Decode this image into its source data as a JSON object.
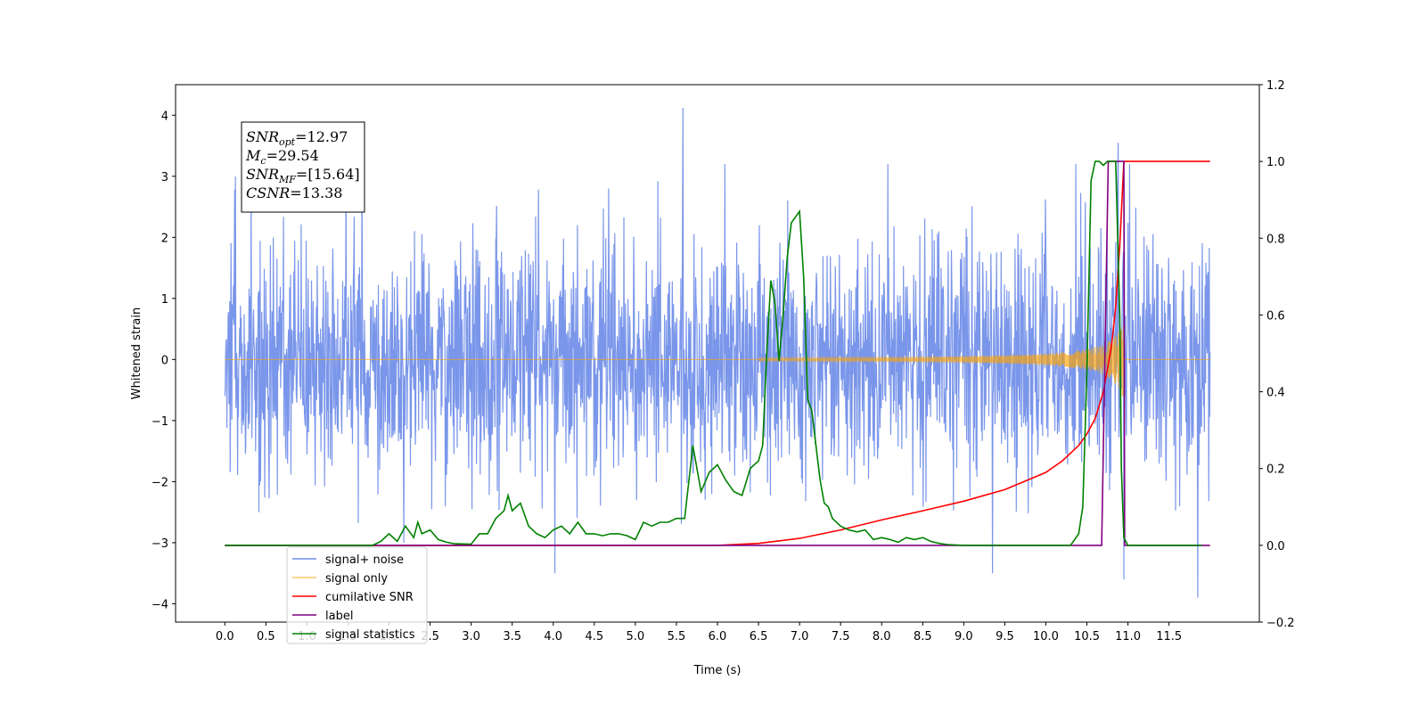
{
  "chart_data": {
    "type": "line",
    "title": "",
    "xlabel": "Time (s)",
    "ylabel": "Whitened strain",
    "xlim": [
      -0.6,
      12.6
    ],
    "ylim": [
      -4.3,
      4.5
    ],
    "y2lim": [
      -0.2,
      1.2
    ],
    "x_ticks": [
      "0.0",
      "0.5",
      "1.0",
      "1.5",
      "2.0",
      "2.5",
      "3.0",
      "3.5",
      "4.0",
      "4.5",
      "5.0",
      "5.5",
      "6.0",
      "6.5",
      "7.0",
      "7.5",
      "8.0",
      "8.5",
      "9.0",
      "9.5",
      "10.0",
      "10.5",
      "11.0",
      "11.5"
    ],
    "x_tick_values": [
      0,
      0.5,
      1,
      1.5,
      2,
      2.5,
      3,
      3.5,
      4,
      4.5,
      5,
      5.5,
      6,
      6.5,
      7,
      7.5,
      8,
      8.5,
      9,
      9.5,
      10,
      10.5,
      11,
      11.5
    ],
    "y_ticks": [
      "−4",
      "−3",
      "−2",
      "−1",
      "0",
      "1",
      "2",
      "3",
      "4"
    ],
    "y_tick_values": [
      -4,
      -3,
      -2,
      -1,
      0,
      1,
      2,
      3,
      4
    ],
    "y2_ticks": [
      "−0.2",
      "0.0",
      "0.2",
      "0.4",
      "0.6",
      "0.8",
      "1.0",
      "1.2"
    ],
    "y2_tick_values": [
      -0.2,
      0,
      0.2,
      0.4,
      0.6,
      0.8,
      1.0,
      1.2
    ],
    "grid": false,
    "legend_placement": "lower-left",
    "annotation": {
      "lines": [
        {
          "main": "SNR",
          "sub": "opt",
          "rest": "=12.97"
        },
        {
          "main": "M",
          "sub": "c",
          "rest": "=29.54"
        },
        {
          "main": "SNR",
          "sub": "MF",
          "rest": "=[15.64]"
        },
        {
          "main": "CSNR",
          "sub": "",
          "rest": "=13.38"
        }
      ]
    },
    "series": [
      {
        "name": "signal+ noise",
        "axis": "left",
        "color": "#4169E1",
        "kind": "noise",
        "x_range": [
          0,
          12.0
        ],
        "typical_peak": 2.4,
        "max": 4.12,
        "min": -3.9,
        "notable_peaks": [
          [
            5.58,
            4.12
          ],
          [
            10.88,
            3.55
          ],
          [
            0.32,
            2.8
          ],
          [
            11.85,
            -3.9
          ],
          [
            10.95,
            -3.6
          ],
          [
            4.02,
            -3.5
          ],
          [
            9.35,
            -3.5
          ]
        ]
      },
      {
        "name": "signal only",
        "axis": "left",
        "color": "#FFA500",
        "kind": "chirp",
        "start": 6.5,
        "end": 10.95,
        "final_amplitude": 0.7
      },
      {
        "name": "cumilative SNR",
        "axis": "right",
        "color": "#FF0000",
        "x": [
          0,
          6.0,
          6.5,
          7.0,
          7.5,
          8.0,
          8.5,
          9.0,
          9.5,
          10.0,
          10.2,
          10.4,
          10.5,
          10.6,
          10.7,
          10.8,
          10.85,
          10.9,
          10.95,
          12.0
        ],
        "y": [
          0,
          0,
          0.005,
          0.018,
          0.04,
          0.066,
          0.09,
          0.115,
          0.145,
          0.19,
          0.22,
          0.26,
          0.29,
          0.33,
          0.4,
          0.52,
          0.62,
          0.78,
          1.0,
          1.0
        ]
      },
      {
        "name": "label",
        "axis": "right",
        "color": "#800080",
        "x": [
          0,
          10.68,
          10.76,
          10.95,
          10.96,
          12.0
        ],
        "y": [
          0,
          0,
          1.0,
          1.0,
          0,
          0
        ]
      },
      {
        "name": "signal statistics",
        "axis": "right",
        "color": "#008000",
        "x": [
          0,
          1.8,
          1.9,
          2.0,
          2.1,
          2.2,
          2.3,
          2.35,
          2.4,
          2.5,
          2.6,
          2.7,
          2.8,
          3.0,
          3.1,
          3.2,
          3.3,
          3.4,
          3.45,
          3.5,
          3.6,
          3.7,
          3.8,
          3.9,
          4.0,
          4.1,
          4.2,
          4.3,
          4.4,
          4.5,
          4.6,
          4.7,
          4.8,
          4.9,
          5.0,
          5.1,
          5.2,
          5.3,
          5.4,
          5.5,
          5.6,
          5.7,
          5.8,
          5.9,
          6.0,
          6.1,
          6.2,
          6.3,
          6.4,
          6.5,
          6.55,
          6.6,
          6.65,
          6.7,
          6.75,
          6.8,
          6.85,
          6.9,
          7.0,
          7.05,
          7.1,
          7.15,
          7.2,
          7.25,
          7.3,
          7.35,
          7.4,
          7.5,
          7.6,
          7.7,
          7.8,
          7.9,
          8.0,
          8.1,
          8.2,
          8.3,
          8.4,
          8.5,
          8.6,
          8.7,
          8.8,
          9.0,
          10.0,
          10.3,
          10.4,
          10.45,
          10.5,
          10.55,
          10.6,
          10.65,
          10.7,
          10.75,
          10.8,
          10.85,
          10.9,
          10.92,
          10.95,
          11.0,
          11.9
        ],
        "y": [
          0,
          0.0,
          0.01,
          0.03,
          0.01,
          0.05,
          0.02,
          0.06,
          0.03,
          0.04,
          0.015,
          0.008,
          0.004,
          0.003,
          0.03,
          0.03,
          0.07,
          0.09,
          0.13,
          0.09,
          0.11,
          0.05,
          0.03,
          0.02,
          0.04,
          0.05,
          0.03,
          0.06,
          0.03,
          0.03,
          0.025,
          0.03,
          0.03,
          0.025,
          0.015,
          0.06,
          0.05,
          0.06,
          0.06,
          0.07,
          0.07,
          0.26,
          0.14,
          0.19,
          0.21,
          0.17,
          0.14,
          0.13,
          0.2,
          0.22,
          0.26,
          0.5,
          0.69,
          0.63,
          0.48,
          0.6,
          0.75,
          0.84,
          0.87,
          0.7,
          0.38,
          0.35,
          0.26,
          0.17,
          0.11,
          0.1,
          0.07,
          0.05,
          0.04,
          0.035,
          0.04,
          0.015,
          0.02,
          0.015,
          0.008,
          0.02,
          0.015,
          0.02,
          0.01,
          0.005,
          0.002,
          0.0,
          0.0,
          0.0,
          0.03,
          0.1,
          0.45,
          0.95,
          1.0,
          1.0,
          0.99,
          1.0,
          1.0,
          1.0,
          0.6,
          0.2,
          0.02,
          0.0,
          0.0
        ]
      }
    ]
  }
}
